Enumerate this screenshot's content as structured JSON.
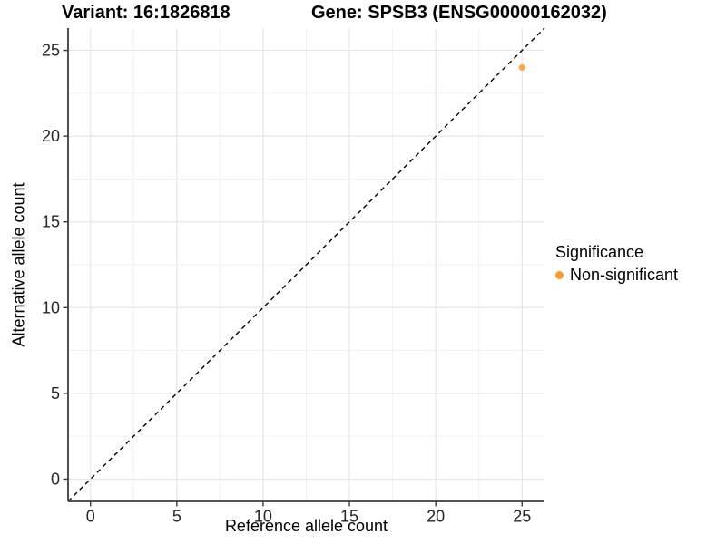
{
  "titles": {
    "variant": "Variant: 16:1826818",
    "gene": "Gene: SPSB3 (ENSG00000162032)"
  },
  "chart_data": {
    "type": "scatter",
    "title": "Variant: 16:1826818   Gene: SPSB3 (ENSG00000162032)",
    "xlabel": "Reference allele count",
    "ylabel": "Alternative allele count",
    "xlim": [
      -1.3,
      26.3
    ],
    "ylim": [
      -1.3,
      26.3
    ],
    "xticks": [
      0,
      5,
      10,
      15,
      20,
      25
    ],
    "yticks": [
      0,
      5,
      10,
      15,
      20,
      25
    ],
    "xticks_minor": [
      2.5,
      7.5,
      12.5,
      17.5,
      22.5
    ],
    "yticks_minor": [
      2.5,
      7.5,
      12.5,
      17.5,
      22.5
    ],
    "grid": "major and minor, light gray on white",
    "identity_line": {
      "slope": 1,
      "intercept": 0,
      "linetype": "dashed",
      "color": "#000000"
    },
    "series": [
      {
        "name": "Non-significant",
        "color": "#F99B2B",
        "point_opacity": 0.85,
        "points": [
          {
            "x": 25,
            "y": 24
          }
        ]
      }
    ],
    "legend": {
      "title": "Significance",
      "position": "right",
      "entries": [
        {
          "label": "Non-significant",
          "color": "#F99B2B"
        }
      ]
    }
  },
  "colors": {
    "background": "#FFFFFF",
    "grid_major": "#E7E7E7",
    "grid_minor": "#F1F1F1",
    "axis_line": "#3C3C3C",
    "tick_label": "#262626",
    "point": "#F99B2B"
  }
}
